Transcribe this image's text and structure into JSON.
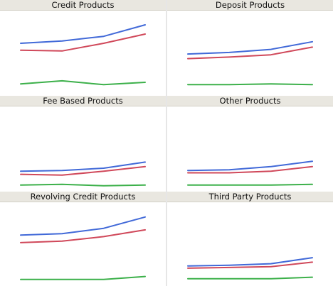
{
  "chart_data": [
    {
      "type": "line",
      "title": "Credit Products",
      "x": [
        1,
        2,
        3,
        4
      ],
      "ylim": [
        0,
        100
      ],
      "series": [
        {
          "color": "#4169d8",
          "values": [
            63,
            66,
            72,
            87
          ]
        },
        {
          "color": "#d0485a",
          "values": [
            54,
            53,
            63,
            75
          ]
        },
        {
          "color": "#3cb04a",
          "values": [
            10,
            14,
            9,
            12
          ]
        }
      ]
    },
    {
      "type": "line",
      "title": "Deposit Products",
      "x": [
        1,
        2,
        3,
        4
      ],
      "ylim": [
        0,
        100
      ],
      "series": [
        {
          "color": "#4169d8",
          "values": [
            49,
            51,
            55,
            65
          ]
        },
        {
          "color": "#d0485a",
          "values": [
            43,
            45,
            48,
            58
          ]
        },
        {
          "color": "#3cb04a",
          "values": [
            9,
            9,
            10,
            9
          ]
        }
      ]
    },
    {
      "type": "line",
      "title": "Fee Based Products",
      "x": [
        1,
        2,
        3,
        4
      ],
      "ylim": [
        0,
        100
      ],
      "series": [
        {
          "color": "#4169d8",
          "values": [
            21,
            22,
            25,
            33
          ]
        },
        {
          "color": "#d0485a",
          "values": [
            17,
            16,
            21,
            27
          ]
        },
        {
          "color": "#3cb04a",
          "values": [
            3,
            4,
            2,
            3
          ]
        }
      ]
    },
    {
      "type": "line",
      "title": "Other Products",
      "x": [
        1,
        2,
        3,
        4
      ],
      "ylim": [
        0,
        100
      ],
      "series": [
        {
          "color": "#4169d8",
          "values": [
            22,
            23,
            27,
            34
          ]
        },
        {
          "color": "#d0485a",
          "values": [
            19,
            19,
            21,
            27
          ]
        },
        {
          "color": "#3cb04a",
          "values": [
            3,
            3,
            3,
            4
          ]
        }
      ]
    },
    {
      "type": "line",
      "title": "Revolving Credit Products",
      "x": [
        1,
        2,
        3,
        4
      ],
      "ylim": [
        0,
        100
      ],
      "series": [
        {
          "color": "#4169d8",
          "values": [
            62,
            64,
            71,
            86
          ]
        },
        {
          "color": "#d0485a",
          "values": [
            52,
            54,
            60,
            69
          ]
        },
        {
          "color": "#3cb04a",
          "values": [
            3,
            3,
            3,
            7
          ]
        }
      ]
    },
    {
      "type": "line",
      "title": "Third Party Products",
      "x": [
        1,
        2,
        3,
        4
      ],
      "ylim": [
        0,
        100
      ],
      "series": [
        {
          "color": "#4169d8",
          "values": [
            21,
            22,
            24,
            32
          ]
        },
        {
          "color": "#d0485a",
          "values": [
            18,
            19,
            20,
            26
          ]
        },
        {
          "color": "#3cb04a",
          "values": [
            4,
            4,
            4,
            6
          ]
        }
      ]
    }
  ]
}
